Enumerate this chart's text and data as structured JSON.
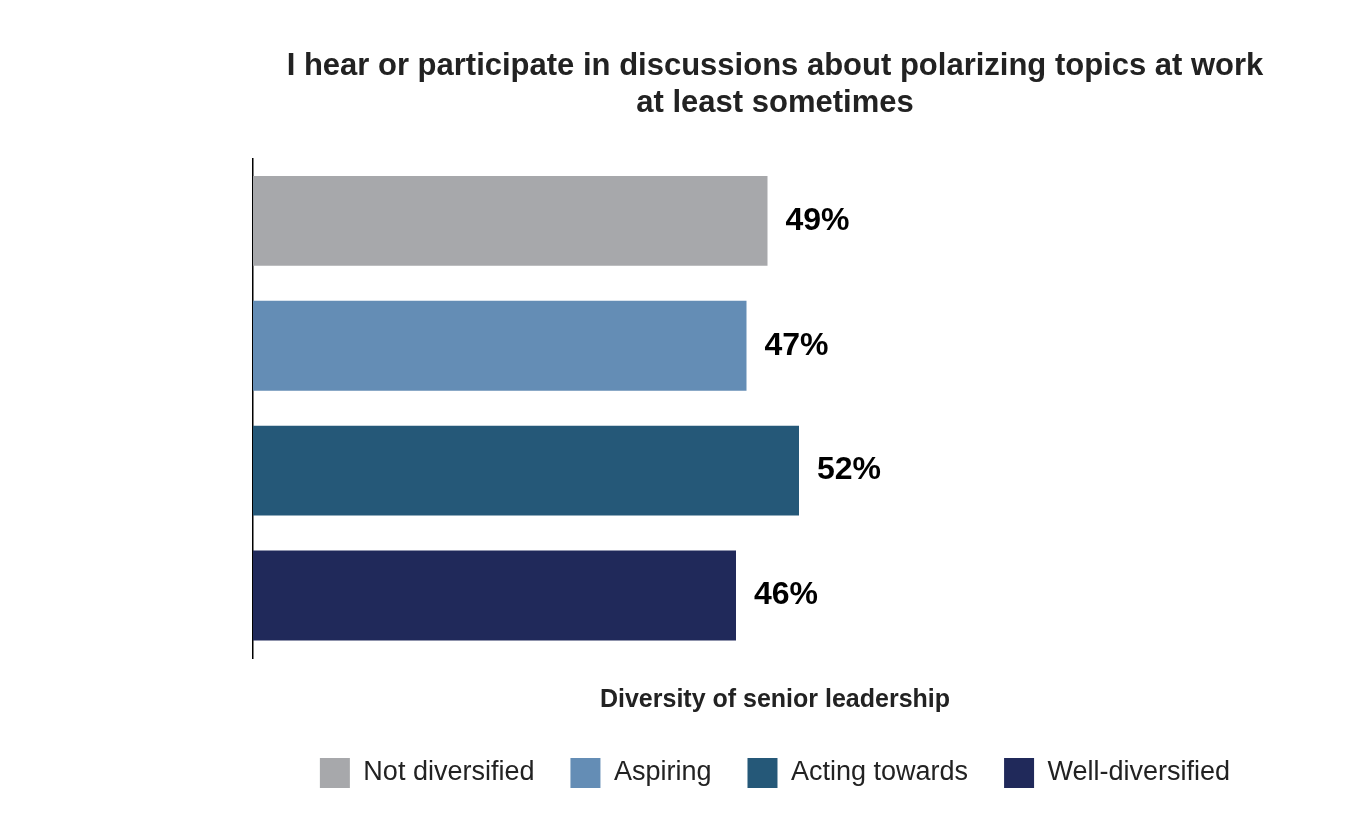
{
  "chart_data": {
    "type": "bar",
    "orientation": "horizontal",
    "title": "I hear or participate in discussions about polarizing topics at work\nat least sometimes",
    "categories": [
      null,
      null,
      null,
      null
    ],
    "series": [
      {
        "name": "Not diversified",
        "color": "#a7a8ab",
        "values": [
          49,
          null,
          null,
          null
        ],
        "value_labels": [
          "49%",
          null,
          null,
          null
        ]
      },
      {
        "name": "Aspiring",
        "color": "#648db5",
        "values": [
          null,
          47,
          null,
          null
        ],
        "value_labels": [
          null,
          "47%",
          null,
          null
        ]
      },
      {
        "name": "Acting towards",
        "color": "#255878",
        "values": [
          null,
          null,
          52,
          null
        ],
        "value_labels": [
          null,
          null,
          "52%",
          null
        ]
      },
      {
        "name": "Well-diversified",
        "color": "#20295a",
        "values": [
          null,
          null,
          null,
          46
        ],
        "value_labels": [
          null,
          null,
          null,
          "46%"
        ]
      }
    ],
    "legend": "bottom",
    "legend_title": "Diversity of senior leadership",
    "stacked": true,
    "grid": false
  }
}
